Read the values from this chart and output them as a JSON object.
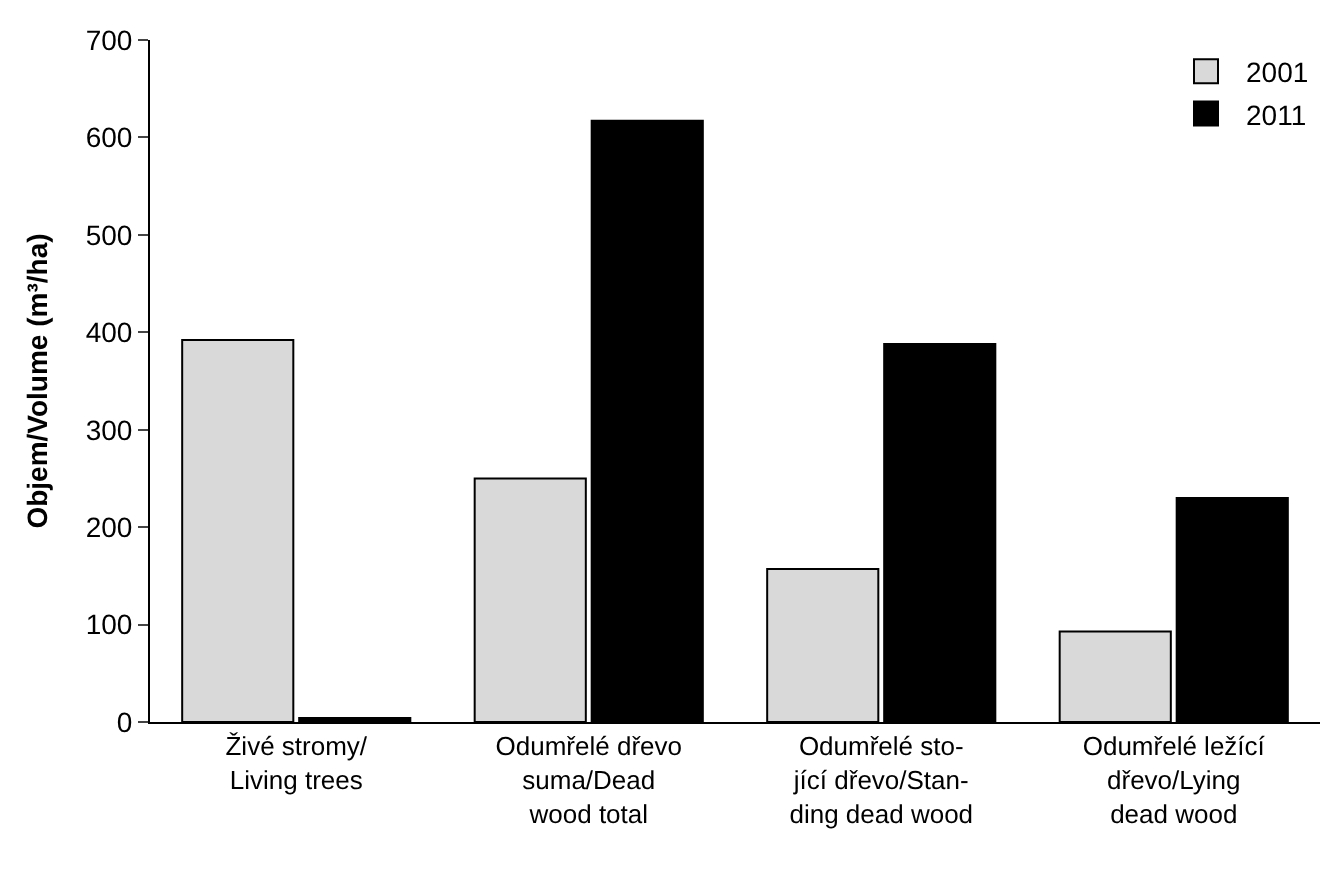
{
  "chart_data": {
    "type": "bar",
    "ylabel": "Objem/Volume (m³/ha)",
    "categories": [
      "Živé stromy/\nLiving trees",
      "Odumřelé dřevo\nsuma/Dead\nwood total",
      "Odumřelé sto-\njící dřevo/Stan-\nding dead wood",
      "Odumřelé ležící\ndřevo/Lying\ndead wood"
    ],
    "series": [
      {
        "name": "2001",
        "color": "#d9d9d9",
        "values": [
          392,
          250,
          157,
          93
        ]
      },
      {
        "name": "2011",
        "color": "#000000",
        "values": [
          4,
          617,
          388,
          230
        ]
      }
    ],
    "ylim": [
      0,
      700
    ],
    "yticks": [
      0,
      100,
      200,
      300,
      400,
      500,
      600,
      700
    ],
    "grid": false,
    "legend": "top right"
  }
}
